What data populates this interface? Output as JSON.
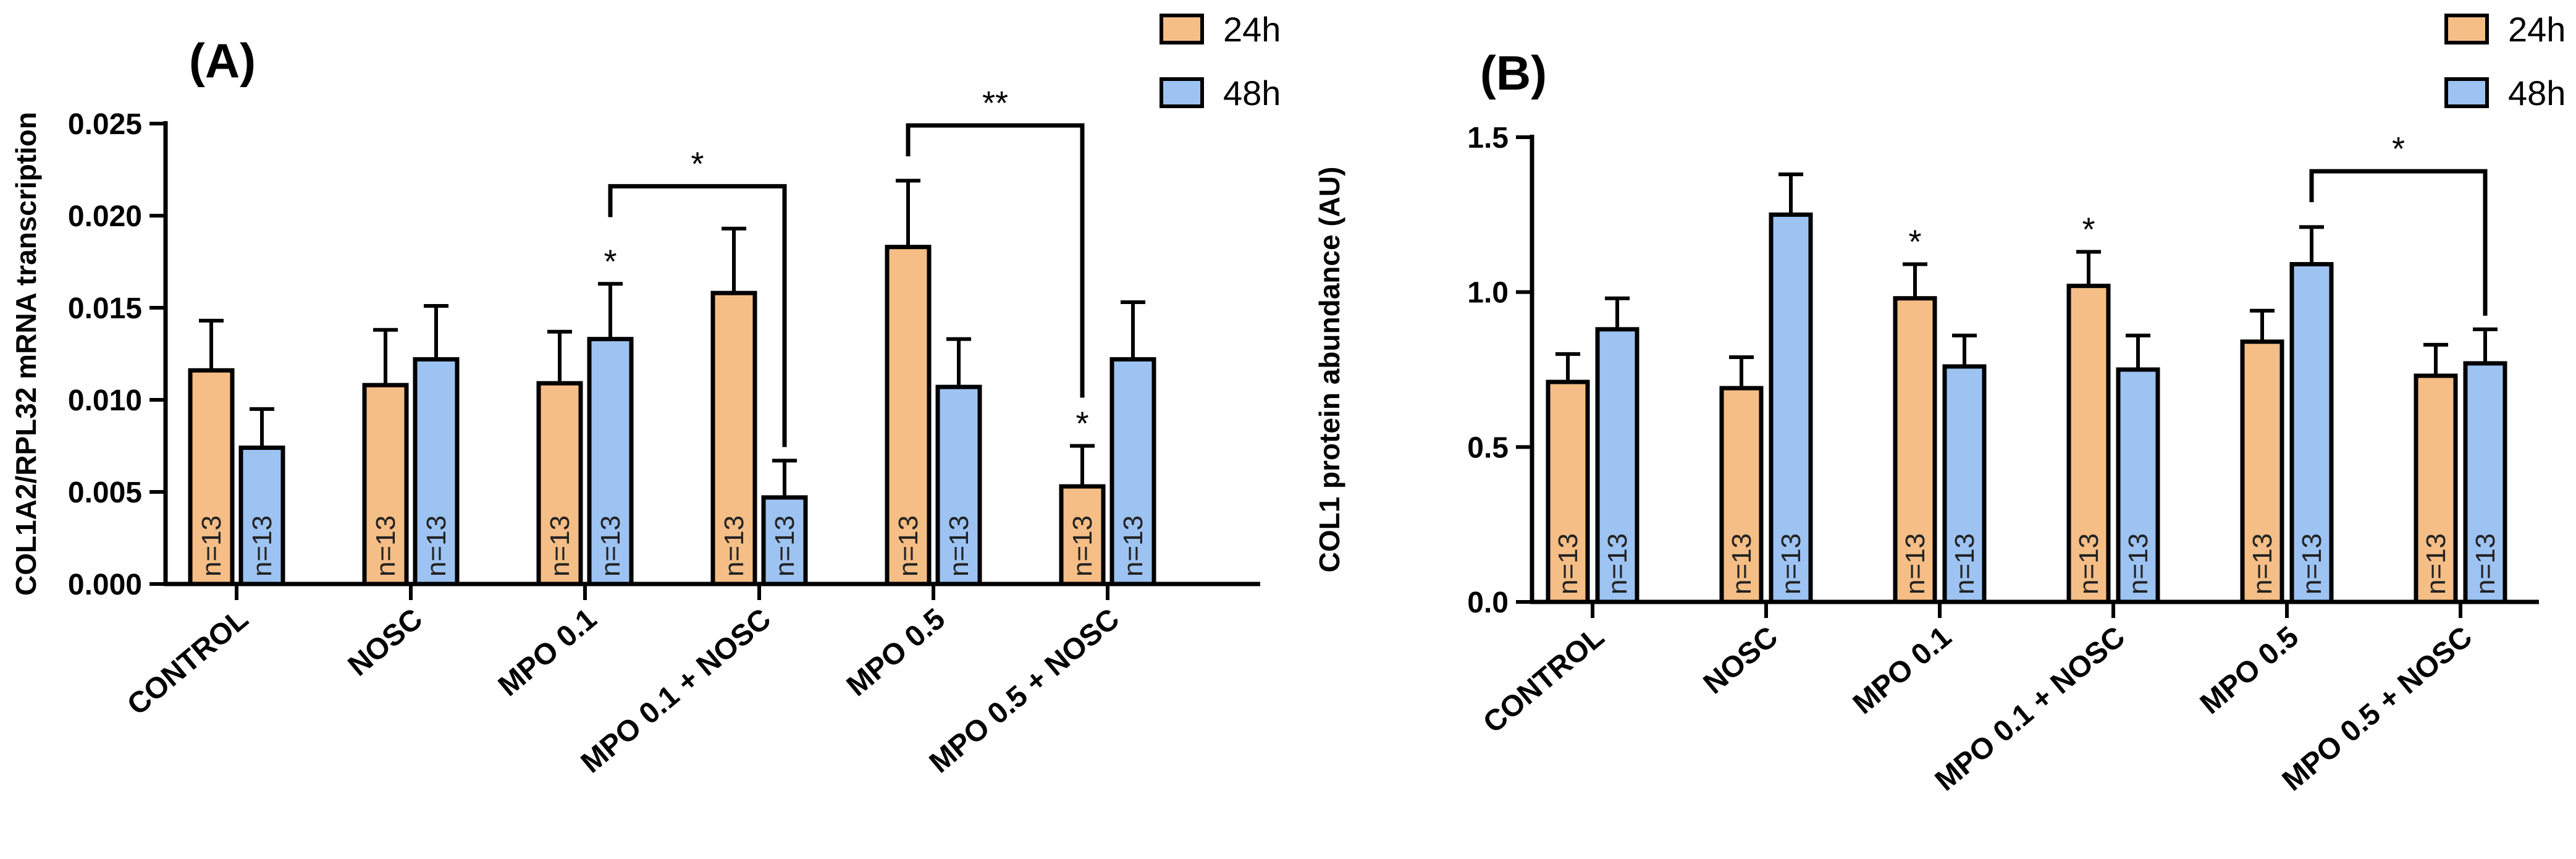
{
  "chart_data": [
    {
      "type": "bar",
      "panel_label": "(A)",
      "ylabel": "COL1A2/RPL32 mRNA transcription",
      "ylim": [
        0,
        0.025
      ],
      "yticks": [
        "0.000",
        "0.005",
        "0.010",
        "0.015",
        "0.020",
        "0.025"
      ],
      "categories": [
        "CONTROL",
        "NOSC",
        "MPO 0.1",
        "MPO 0.1 + NOSC",
        "MPO 0.5",
        "MPO 0.5 + NOSC"
      ],
      "series": [
        {
          "name": "24h",
          "color": "#F5BE86",
          "values": [
            0.0116,
            0.0108,
            0.0109,
            0.0158,
            0.0183,
            0.0053
          ],
          "errors": [
            0.0027,
            0.003,
            0.0028,
            0.0035,
            0.0036,
            0.0022
          ],
          "n_labels": [
            "n=13",
            "n=13",
            "n=13",
            "n=13",
            "n=13",
            "n=13"
          ]
        },
        {
          "name": "48h",
          "color": "#9DC3F2",
          "values": [
            0.0074,
            0.0122,
            0.0133,
            0.0047,
            0.0107,
            0.0122
          ],
          "errors": [
            0.0021,
            0.0029,
            0.003,
            0.002,
            0.0026,
            0.0031
          ],
          "n_labels": [
            "n=13",
            "n=13",
            "n=13",
            "n=13",
            "n=13",
            "n=13"
          ]
        }
      ],
      "bar_stars": [
        {
          "category": 2,
          "series": 1,
          "text": "*"
        },
        {
          "category": 5,
          "series": 0,
          "text": "*"
        }
      ],
      "brackets": [
        {
          "from": [
            2,
            1
          ],
          "to": [
            3,
            1
          ],
          "y": 0.0216,
          "text": "*"
        },
        {
          "from": [
            4,
            0
          ],
          "to": [
            5,
            0
          ],
          "y": 0.0249,
          "text": "**"
        }
      ],
      "legend": {
        "placement": "top-right",
        "items": [
          "24h",
          "48h"
        ]
      }
    },
    {
      "type": "bar",
      "panel_label": "(B)",
      "ylabel": "COL1 protein abundance (AU)",
      "ylim": [
        0,
        1.5
      ],
      "yticks": [
        "0.0",
        "0.5",
        "1.0",
        "1.5"
      ],
      "categories": [
        "CONTROL",
        "NOSC",
        "MPO 0.1",
        "MPO 0.1 + NOSC",
        "MPO 0.5",
        "MPO 0.5 + NOSC"
      ],
      "series": [
        {
          "name": "24h",
          "color": "#F5BE86",
          "values": [
            0.71,
            0.69,
            0.98,
            1.02,
            0.84,
            0.73
          ],
          "errors": [
            0.09,
            0.1,
            0.11,
            0.11,
            0.1,
            0.1
          ],
          "n_labels": [
            "n=13",
            "n=13",
            "n=13",
            "n=13",
            "n=13",
            "n=13"
          ]
        },
        {
          "name": "48h",
          "color": "#9DC3F2",
          "values": [
            0.88,
            1.25,
            0.76,
            0.75,
            1.09,
            0.77
          ],
          "errors": [
            0.1,
            0.13,
            0.1,
            0.11,
            0.12,
            0.11
          ],
          "n_labels": [
            "n=13",
            "n=13",
            "n=13",
            "n=13",
            "n=13",
            "n=13"
          ]
        }
      ],
      "bar_stars": [
        {
          "category": 2,
          "series": 0,
          "text": "*"
        },
        {
          "category": 3,
          "series": 0,
          "text": "*"
        }
      ],
      "brackets": [
        {
          "from": [
            4,
            1
          ],
          "to": [
            5,
            1
          ],
          "y": 1.39,
          "text": "*"
        }
      ],
      "legend": {
        "placement": "top-right",
        "items": [
          "24h",
          "48h"
        ]
      }
    }
  ]
}
